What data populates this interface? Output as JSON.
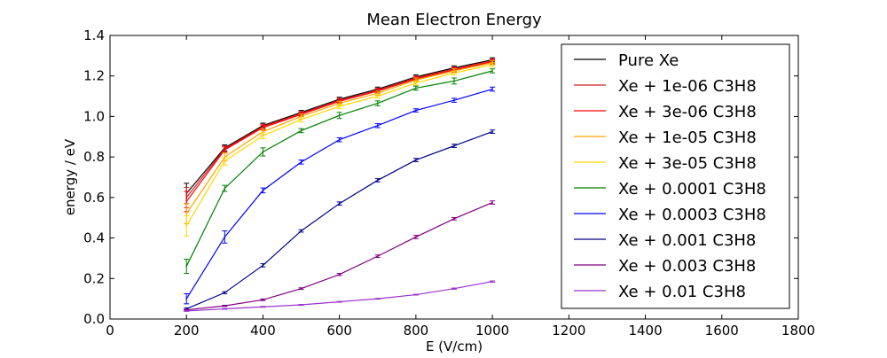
{
  "chart_data": {
    "type": "line",
    "title": "Mean Electron Energy",
    "xlabel": "E (V/cm)",
    "ylabel": "energy / eV",
    "xlim": [
      0,
      1800
    ],
    "ylim": [
      0.0,
      1.4
    ],
    "xticks": [
      "0",
      "200",
      "400",
      "600",
      "800",
      "1000",
      "1200",
      "1400",
      "1600",
      "1800"
    ],
    "yticks": [
      "0.0",
      "0.2",
      "0.4",
      "0.6",
      "0.8",
      "1.0",
      "1.2",
      "1.4"
    ],
    "grid": false,
    "legend_position": "top-right",
    "x": [
      200,
      300,
      400,
      500,
      600,
      700,
      800,
      900,
      1000
    ],
    "series": [
      {
        "name": "Pure Xe",
        "color": "#000000",
        "values": [
          0.62,
          0.845,
          0.955,
          1.02,
          1.085,
          1.135,
          1.195,
          1.24,
          1.28
        ],
        "errors": [
          0.05,
          0.015,
          0.012,
          0.01,
          0.01,
          0.01,
          0.01,
          0.01,
          0.01
        ]
      },
      {
        "name": "Xe + 1e-06 C3H8",
        "color": "#cc2222",
        "values": [
          0.6,
          0.84,
          0.95,
          1.015,
          1.08,
          1.13,
          1.19,
          1.235,
          1.275
        ],
        "errors": [
          0.05,
          0.015,
          0.012,
          0.01,
          0.01,
          0.01,
          0.01,
          0.01,
          0.01
        ]
      },
      {
        "name": "Xe + 3e-06 C3H8",
        "color": "#ff0000",
        "values": [
          0.58,
          0.835,
          0.945,
          1.01,
          1.075,
          1.125,
          1.185,
          1.23,
          1.27
        ],
        "errors": [
          0.05,
          0.015,
          0.012,
          0.01,
          0.01,
          0.01,
          0.01,
          0.01,
          0.01
        ]
      },
      {
        "name": "Xe + 1e-05 C3H8",
        "color": "#ffa500",
        "values": [
          0.52,
          0.8,
          0.925,
          1.0,
          1.065,
          1.115,
          1.18,
          1.225,
          1.265
        ],
        "errors": [
          0.05,
          0.02,
          0.015,
          0.012,
          0.01,
          0.01,
          0.01,
          0.01,
          0.01
        ]
      },
      {
        "name": "Xe + 3e-05 C3H8",
        "color": "#ffd700",
        "values": [
          0.46,
          0.78,
          0.905,
          0.985,
          1.05,
          1.1,
          1.165,
          1.215,
          1.255
        ],
        "errors": [
          0.05,
          0.02,
          0.015,
          0.012,
          0.01,
          0.01,
          0.01,
          0.01,
          0.01
        ]
      },
      {
        "name": "Xe + 0.0001 C3H8",
        "color": "#008000",
        "values": [
          0.26,
          0.645,
          0.825,
          0.93,
          1.005,
          1.065,
          1.14,
          1.175,
          1.225
        ],
        "errors": [
          0.035,
          0.015,
          0.02,
          0.01,
          0.015,
          0.012,
          0.01,
          0.015,
          0.01
        ]
      },
      {
        "name": "Xe + 0.0003 C3H8",
        "color": "#0000ff",
        "values": [
          0.1,
          0.405,
          0.635,
          0.775,
          0.885,
          0.955,
          1.03,
          1.08,
          1.135
        ],
        "errors": [
          0.025,
          0.03,
          0.012,
          0.01,
          0.01,
          0.01,
          0.008,
          0.01,
          0.01
        ]
      },
      {
        "name": "Xe + 0.001 C3H8",
        "color": "#00008b",
        "values": [
          0.05,
          0.13,
          0.265,
          0.435,
          0.57,
          0.685,
          0.785,
          0.855,
          0.925
        ],
        "errors": [
          0.005,
          0.005,
          0.008,
          0.006,
          0.008,
          0.008,
          0.008,
          0.008,
          0.008
        ]
      },
      {
        "name": "Xe + 0.003 C3H8",
        "color": "#800080",
        "values": [
          0.045,
          0.065,
          0.095,
          0.15,
          0.22,
          0.31,
          0.405,
          0.495,
          0.575
        ],
        "errors": [
          0.003,
          0.003,
          0.004,
          0.004,
          0.005,
          0.006,
          0.008,
          0.006,
          0.008
        ]
      },
      {
        "name": "Xe + 0.01 C3H8",
        "color": "#9932cc",
        "values": [
          0.04,
          0.05,
          0.06,
          0.07,
          0.085,
          0.1,
          0.12,
          0.15,
          0.185
        ],
        "errors": [
          0.002,
          0.002,
          0.002,
          0.002,
          0.002,
          0.002,
          0.002,
          0.003,
          0.003
        ]
      }
    ]
  }
}
